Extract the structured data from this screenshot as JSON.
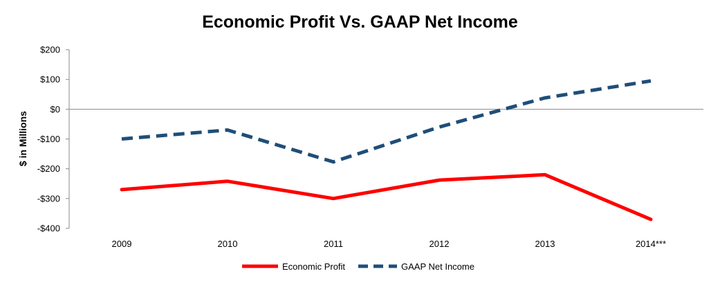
{
  "chart_data": {
    "type": "line",
    "title": "Economic Profit Vs. GAAP Net Income",
    "xlabel": "",
    "ylabel": "$ in Millions",
    "categories": [
      "2009",
      "2010",
      "2011",
      "2012",
      "2013",
      "2014***"
    ],
    "ylim": [
      -400,
      200
    ],
    "yticks": [
      200,
      100,
      0,
      -100,
      -200,
      -300,
      -400
    ],
    "ytick_labels": [
      "$200",
      "$100",
      "$0",
      "-$100",
      "-$200",
      "-$300",
      "-$400"
    ],
    "grid": false,
    "legend_position": "bottom",
    "series": [
      {
        "name": "Economic Profit",
        "values": [
          -270,
          -242,
          -300,
          -238,
          -220,
          -370
        ],
        "color": "#ff0000",
        "style": "solid"
      },
      {
        "name": "GAAP Net Income",
        "values": [
          -100,
          -70,
          -177,
          -60,
          38,
          95
        ],
        "color": "#1f4e79",
        "style": "dashed"
      }
    ]
  }
}
